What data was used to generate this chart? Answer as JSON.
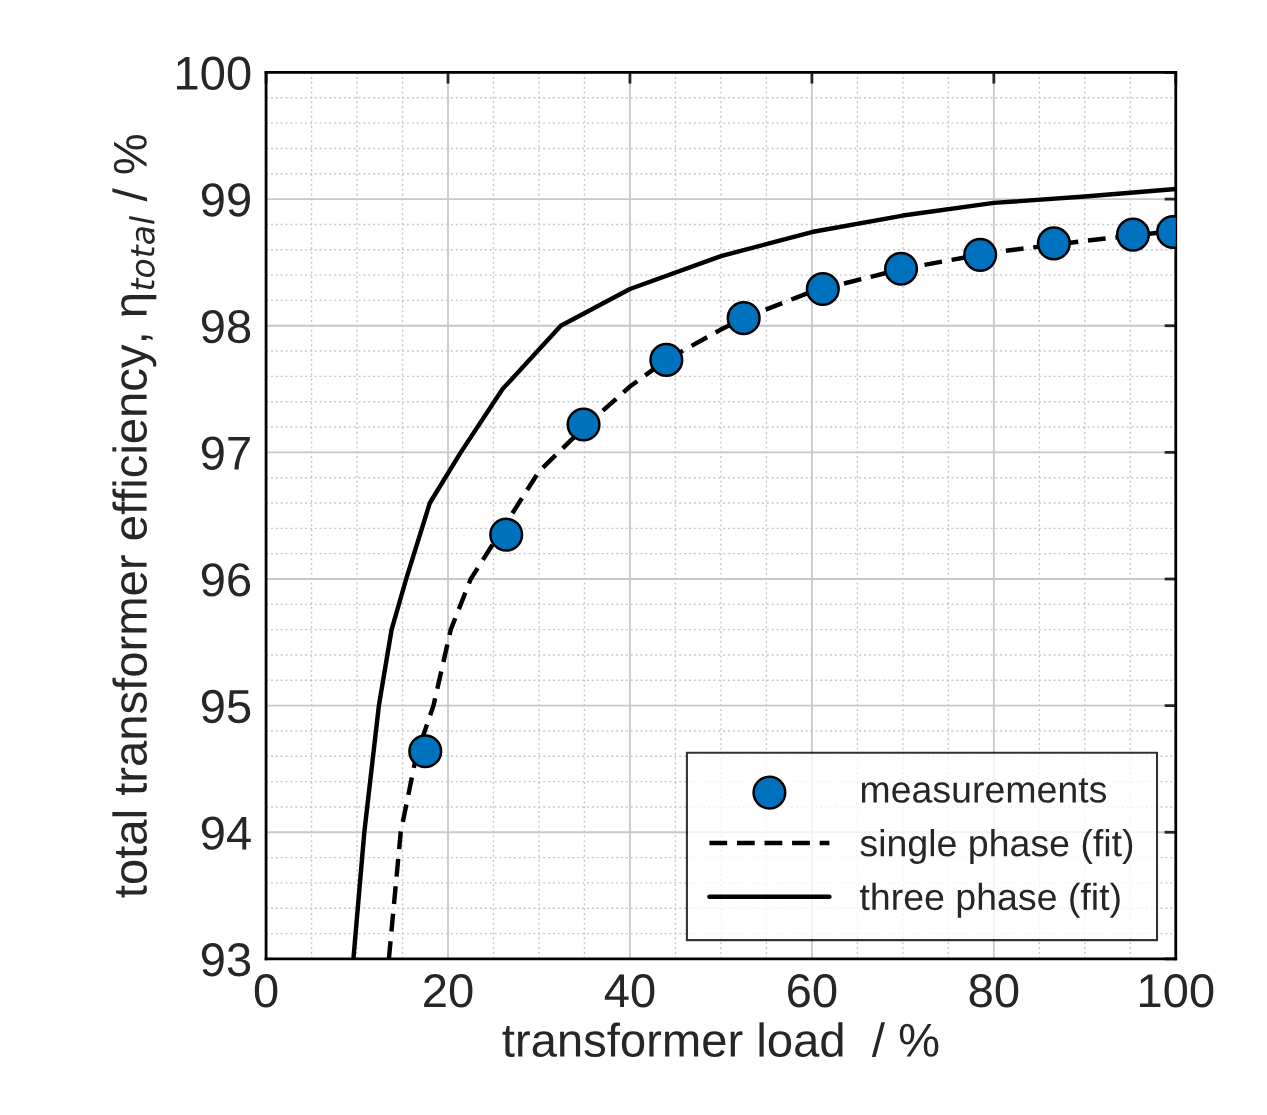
{
  "chart_data": {
    "type": "scatter",
    "xlabel": "transformer load  / %",
    "ylabel": "total transformer efficiency, η$_{total}$ / %",
    "xlim": [
      0,
      100
    ],
    "ylim": [
      93,
      100
    ],
    "xticks": [
      0,
      20,
      40,
      60,
      80,
      100
    ],
    "yticks": [
      93,
      94,
      95,
      96,
      97,
      98,
      99,
      100
    ],
    "grid": true,
    "legend": "bottom right",
    "series": [
      {
        "name": "measurements",
        "marker": "circle",
        "color": "#0072bd",
        "x": [
          17.5,
          26.4,
          34.9,
          44.0,
          52.5,
          61.2,
          69.8,
          78.5,
          86.6,
          95.3,
          99.7
        ],
        "values": [
          94.64,
          96.35,
          97.22,
          97.73,
          98.06,
          98.29,
          98.45,
          98.56,
          98.65,
          98.72,
          98.74
        ]
      },
      {
        "name": "single phase (fit)",
        "type": "line",
        "line_style": "dashed",
        "color": "#000000",
        "x": [
          13.5,
          14.8,
          16.5,
          18.4,
          20.3,
          22.5,
          30,
          35,
          40,
          44,
          50,
          52.5,
          60,
          70,
          80,
          90,
          100
        ],
        "values": [
          93,
          94,
          94.6,
          95,
          95.6,
          96,
          96.85,
          97.2,
          97.52,
          97.73,
          97.97,
          98.06,
          98.27,
          98.45,
          98.58,
          98.67,
          98.75
        ]
      },
      {
        "name": "three phase (fit)",
        "type": "line",
        "line_style": "solid",
        "color": "#000000",
        "x": [
          9.6,
          10.8,
          12.4,
          13.8,
          15.4,
          18,
          21.4,
          26,
          32.4,
          40,
          50,
          60,
          70,
          80,
          90,
          100
        ],
        "values": [
          93,
          94,
          95,
          95.6,
          96,
          96.6,
          97,
          97.5,
          98,
          98.29,
          98.55,
          98.74,
          98.87,
          98.97,
          99.02,
          99.08
        ]
      }
    ]
  }
}
